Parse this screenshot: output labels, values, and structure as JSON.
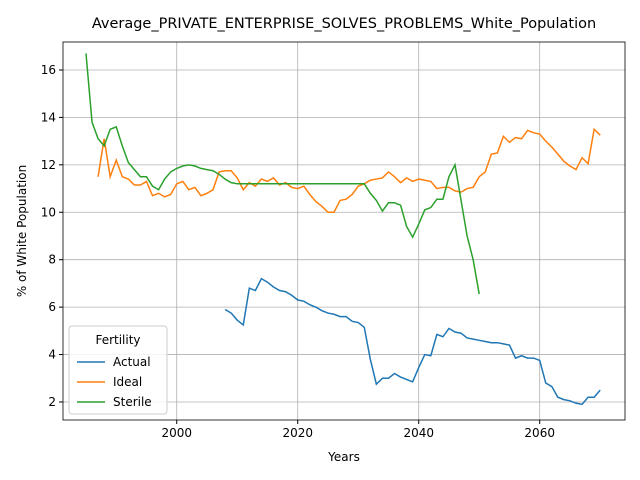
{
  "chart_data": {
    "type": "line",
    "title": "Average_PRIVATE_ENTERPRISE_SOLVES_PROBLEMS_White_Population",
    "x_label": "Years",
    "y_label": "% of White Population",
    "legend_title": "Fertility",
    "legend": "lower left",
    "grid": true,
    "x": [
      1985,
      1986,
      1987,
      1988,
      1989,
      1990,
      1991,
      1992,
      1993,
      1994,
      1995,
      1996,
      1997,
      1998,
      1999,
      2000,
      2001,
      2002,
      2003,
      2004,
      2005,
      2006,
      2007,
      2008,
      2009,
      2010,
      2011,
      2012,
      2013,
      2014,
      2015,
      2016,
      2017,
      2018,
      2019,
      2020,
      2021,
      2022,
      2023,
      2024,
      2025,
      2026,
      2027,
      2028,
      2029,
      2030,
      2031,
      2032,
      2033,
      2034,
      2035,
      2036,
      2037,
      2038,
      2039,
      2040,
      2041,
      2042,
      2043,
      2044,
      2045,
      2046,
      2047,
      2048,
      2049,
      2050,
      2051,
      2052,
      2053,
      2054,
      2055,
      2056,
      2057,
      2058,
      2059,
      2060,
      2061,
      2062,
      2063,
      2064,
      2065,
      2066,
      2067,
      2068,
      2069,
      2070
    ],
    "xlim": [
      1981.2,
      2074.1
    ],
    "xticks": [
      2000,
      2020,
      2040,
      2060
    ],
    "ylim": [
      1.24,
      17.18
    ],
    "yticks": [
      2,
      4,
      6,
      8,
      10,
      12,
      14,
      16
    ],
    "series": [
      {
        "name": "Actual",
        "color": "#1f77b4",
        "values": [
          null,
          null,
          null,
          null,
          null,
          null,
          null,
          null,
          null,
          null,
          null,
          null,
          null,
          null,
          null,
          null,
          null,
          null,
          null,
          null,
          null,
          null,
          null,
          5.9,
          5.75,
          5.45,
          5.25,
          6.8,
          6.7,
          7.2,
          7.05,
          6.85,
          6.7,
          6.65,
          6.5,
          6.3,
          6.25,
          6.1,
          6.0,
          5.85,
          5.75,
          5.7,
          5.6,
          5.6,
          5.4,
          5.35,
          5.15,
          3.8,
          2.75,
          3.0,
          3.0,
          3.2,
          3.05,
          2.95,
          2.85,
          3.45,
          4.0,
          3.95,
          4.85,
          4.75,
          5.1,
          4.95,
          4.9,
          4.7,
          4.65,
          4.6,
          4.55,
          4.5,
          4.5,
          4.45,
          4.4,
          3.85,
          3.95,
          3.85,
          3.85,
          3.75,
          2.8,
          2.65,
          2.2,
          2.1,
          2.05,
          1.95,
          1.9,
          2.2,
          2.2,
          2.5
        ]
      },
      {
        "name": "Ideal",
        "color": "#ff7f0e",
        "values": [
          null,
          null,
          11.5,
          13.1,
          11.5,
          12.2,
          11.5,
          11.4,
          11.15,
          11.15,
          11.3,
          10.7,
          10.8,
          10.65,
          10.75,
          11.2,
          11.3,
          10.95,
          11.05,
          10.7,
          10.8,
          10.95,
          11.7,
          11.75,
          11.75,
          11.45,
          10.95,
          11.25,
          11.1,
          11.4,
          11.3,
          11.45,
          11.15,
          11.25,
          11.05,
          11.0,
          11.1,
          10.75,
          10.45,
          10.25,
          10.0,
          10.0,
          10.5,
          10.55,
          10.75,
          11.1,
          11.2,
          11.35,
          11.4,
          11.45,
          11.7,
          11.5,
          11.25,
          11.45,
          11.3,
          11.4,
          11.35,
          11.3,
          11.0,
          11.05,
          11.05,
          10.9,
          10.85,
          11.0,
          11.05,
          11.5,
          11.7,
          12.45,
          12.5,
          13.2,
          12.95,
          13.15,
          13.1,
          13.45,
          13.35,
          13.3,
          13.0,
          12.75,
          12.45,
          12.15,
          11.95,
          11.8,
          12.3,
          12.05,
          13.5,
          13.25
        ]
      },
      {
        "name": "Sterile",
        "color": "#2ca02c",
        "values": [
          16.7,
          13.8,
          13.1,
          12.8,
          13.5,
          13.6,
          12.8,
          12.1,
          11.8,
          11.5,
          11.5,
          11.1,
          10.95,
          11.4,
          11.7,
          11.85,
          11.95,
          12.0,
          11.95,
          11.85,
          11.8,
          11.75,
          11.6,
          11.4,
          11.25,
          11.2,
          11.2,
          11.2,
          11.2,
          11.2,
          11.2,
          11.2,
          11.2,
          11.2,
          11.2,
          11.2,
          11.2,
          11.2,
          11.2,
          11.2,
          11.2,
          11.2,
          11.2,
          11.2,
          11.2,
          11.2,
          11.2,
          10.8,
          10.5,
          10.05,
          10.4,
          10.4,
          10.3,
          9.4,
          8.95,
          9.5,
          10.1,
          10.2,
          10.55,
          10.55,
          11.5,
          12.0,
          10.5,
          9.0,
          8.0,
          6.55,
          null,
          null,
          null,
          null,
          null,
          null,
          null,
          null,
          null,
          null,
          null,
          null,
          null,
          null,
          null,
          null,
          null,
          null,
          null,
          null
        ]
      }
    ]
  }
}
